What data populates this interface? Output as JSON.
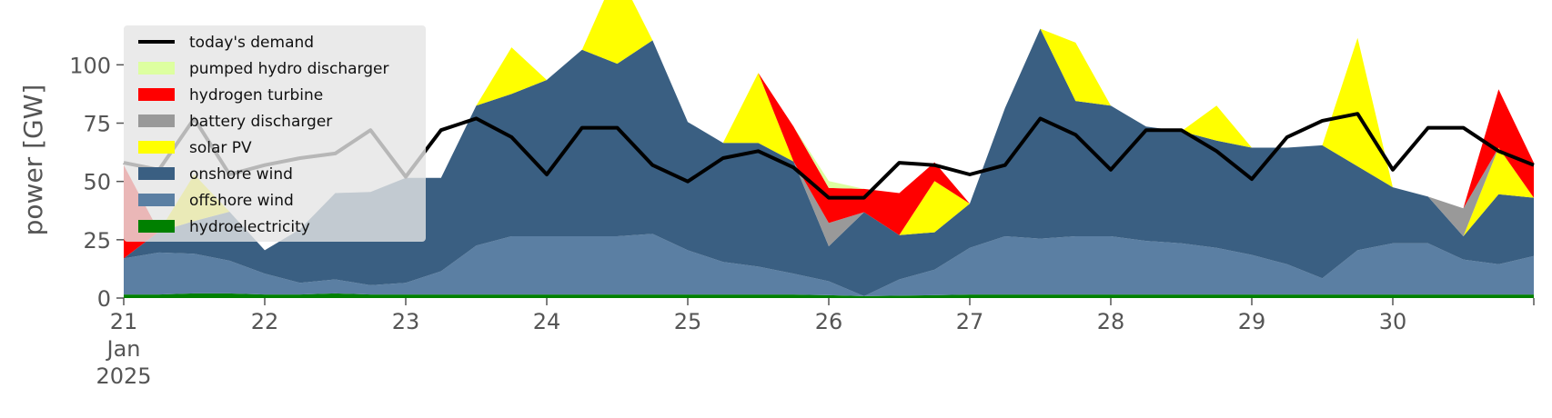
{
  "chart_data": {
    "type": "area",
    "ylabel": "power [GW]",
    "xlabel": "",
    "ylim": [
      0,
      120
    ],
    "xlim": [
      "2025-01-21",
      "2025-01-31"
    ],
    "yticks": [
      0,
      25,
      50,
      75,
      100
    ],
    "xtick_labels": [
      "21",
      "22",
      "23",
      "24",
      "25",
      "26",
      "27",
      "28",
      "29",
      "30"
    ],
    "xtick_sub_month": "Jan",
    "xtick_sub_year": "2025",
    "grid": false,
    "legend_position": "top-left",
    "x": [
      "2025-01-21T00:00",
      "2025-01-21T06:00",
      "2025-01-21T12:00",
      "2025-01-21T18:00",
      "2025-01-22T00:00",
      "2025-01-22T06:00",
      "2025-01-22T12:00",
      "2025-01-22T18:00",
      "2025-01-23T00:00",
      "2025-01-23T06:00",
      "2025-01-23T12:00",
      "2025-01-23T18:00",
      "2025-01-24T00:00",
      "2025-01-24T06:00",
      "2025-01-24T12:00",
      "2025-01-24T18:00",
      "2025-01-25T00:00",
      "2025-01-25T06:00",
      "2025-01-25T12:00",
      "2025-01-25T18:00",
      "2025-01-26T00:00",
      "2025-01-26T06:00",
      "2025-01-26T12:00",
      "2025-01-26T18:00",
      "2025-01-27T00:00",
      "2025-01-27T06:00",
      "2025-01-27T12:00",
      "2025-01-27T18:00",
      "2025-01-28T00:00",
      "2025-01-28T06:00",
      "2025-01-28T12:00",
      "2025-01-28T18:00",
      "2025-01-29T00:00",
      "2025-01-29T06:00",
      "2025-01-29T12:00",
      "2025-01-29T18:00",
      "2025-01-30T00:00",
      "2025-01-30T06:00",
      "2025-01-30T12:00",
      "2025-01-30T18:00",
      "2025-01-31T00:00"
    ],
    "series": [
      {
        "name": "hydroelectricity",
        "color": "#008000",
        "values": [
          1.5,
          1.5,
          2,
          2,
          1.5,
          1.5,
          2,
          1.5,
          1.5,
          1.5,
          1.5,
          1.5,
          1.5,
          1.5,
          1.5,
          1.5,
          1.5,
          1.5,
          1.5,
          1.5,
          1.2,
          0.8,
          1,
          1.2,
          1.5,
          1.5,
          1.5,
          1.5,
          1.5,
          1.5,
          1.5,
          1.5,
          1.5,
          1.5,
          1.5,
          1.5,
          1.5,
          1.5,
          1.5,
          1.5,
          1.5
        ]
      },
      {
        "name": "offshore wind",
        "color": "#5b7fa3",
        "values": [
          15.5,
          18,
          17,
          14,
          9,
          5,
          6,
          4,
          5,
          10,
          21,
          25,
          25,
          25,
          25,
          26,
          19,
          14,
          12,
          9,
          6,
          0,
          7,
          11,
          20,
          25,
          24,
          25,
          25,
          23,
          22,
          20,
          17,
          13,
          7,
          19,
          22,
          22,
          15,
          13,
          16.5
        ]
      },
      {
        "name": "onshore wind",
        "color": "#3a5f82",
        "values": [
          0,
          9,
          14,
          21,
          10,
          23,
          37,
          40,
          45,
          40,
          60,
          61,
          67,
          80,
          74,
          83,
          55,
          51,
          53,
          48,
          15,
          36,
          19,
          16,
          19,
          55,
          90,
          58,
          56,
          49,
          48,
          46,
          46,
          50,
          57,
          36,
          24,
          20,
          10,
          30,
          25
        ]
      },
      {
        "name": "solar PV",
        "color": "#ffff00",
        "values": [
          0,
          0,
          20,
          0,
          0,
          0,
          0,
          0,
          0,
          0,
          0,
          20,
          0,
          0,
          40,
          0,
          0,
          0,
          30,
          0,
          0,
          0,
          0,
          22,
          0,
          0,
          0,
          25,
          0,
          0,
          0,
          15,
          0,
          0,
          0,
          55,
          0,
          0,
          0,
          20,
          0
        ]
      },
      {
        "name": "battery discharger",
        "color": "#999999",
        "values": [
          0,
          0,
          0,
          0,
          0,
          0,
          0,
          0,
          0,
          0,
          0,
          0,
          0,
          0,
          0,
          0,
          0,
          0,
          0,
          0,
          10,
          0,
          0,
          0,
          0,
          0,
          0,
          0,
          0,
          0,
          0,
          0,
          0,
          0,
          0,
          0,
          0,
          0,
          12,
          0,
          0
        ]
      },
      {
        "name": "hydrogen turbine",
        "color": "#ff0000",
        "values": [
          40,
          0,
          0,
          0,
          0,
          0,
          0,
          0,
          0,
          0,
          0,
          0,
          0,
          0,
          0,
          0,
          0,
          0,
          0,
          15,
          15,
          10,
          18,
          8,
          0,
          0,
          0,
          0,
          0,
          0,
          0,
          0,
          0,
          0,
          0,
          0,
          0,
          0,
          0,
          25,
          15
        ]
      },
      {
        "name": "pumped hydro discharger",
        "color": "#ddffa0",
        "values": [
          0,
          0,
          0,
          0,
          0,
          0,
          0,
          0,
          0,
          0,
          0,
          0,
          0,
          0,
          0,
          0,
          0,
          0,
          0,
          0,
          3,
          0,
          0,
          0,
          0,
          0,
          0,
          0,
          0,
          0,
          0,
          0,
          0,
          0,
          0,
          0,
          0,
          0,
          0,
          0,
          0
        ]
      },
      {
        "name": "today's demand",
        "color": "#000000",
        "type": "line",
        "values": [
          58,
          55,
          77,
          53,
          57,
          60,
          62,
          72,
          52,
          72,
          77,
          69,
          53,
          73,
          73,
          57,
          50,
          60,
          63,
          56,
          43,
          43,
          58,
          57,
          53,
          57,
          77,
          70,
          55,
          72,
          72,
          63,
          51,
          69,
          76,
          79,
          55,
          73,
          73,
          63,
          57
        ]
      }
    ]
  }
}
